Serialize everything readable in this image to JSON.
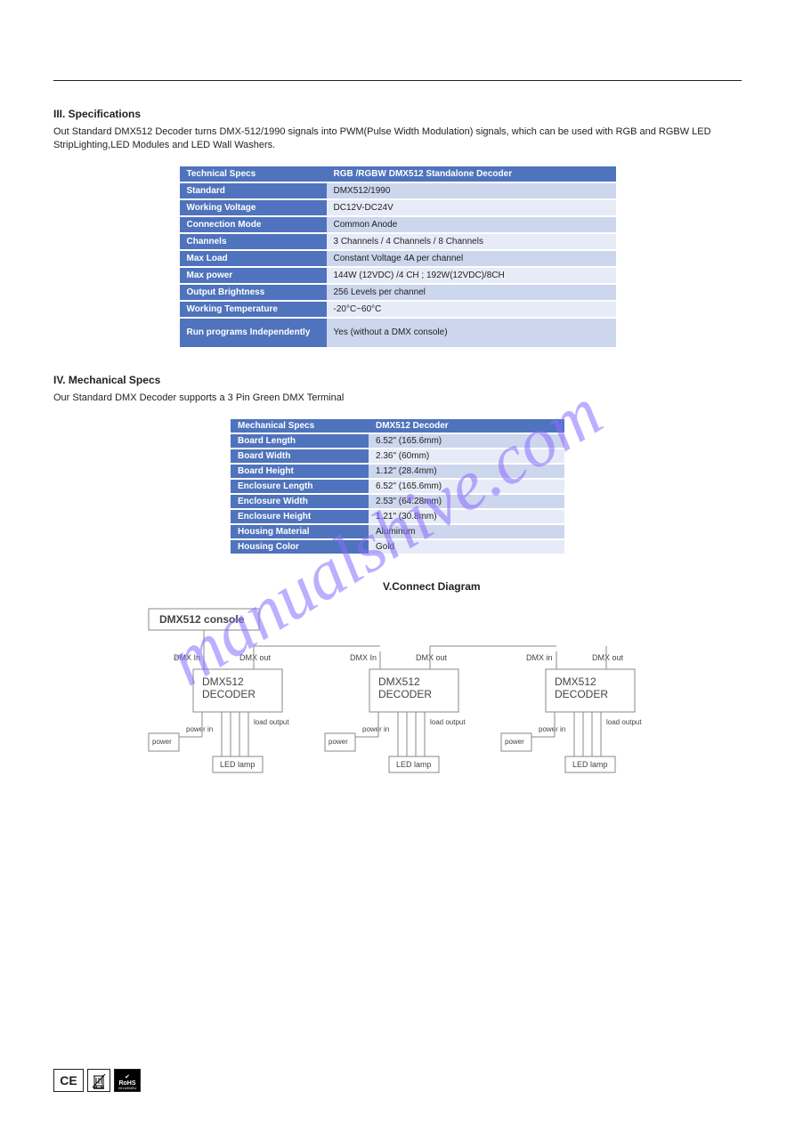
{
  "section3": {
    "heading": "III. Specifications",
    "desc": "Out Standard DMX512 Decoder turns DMX-512/1990 signals into PWM(Pulse Width Modulation) signals, which can be used with RGB and RGBW LED StripLighting,LED Modules and LED Wall Washers.",
    "table": {
      "colors": {
        "hd": "#4f73bc",
        "row_odd": "#ccd6ed",
        "row_even": "#e6ebf7",
        "hd_text": "#ffffff",
        "row_text": "#222222"
      },
      "head": [
        "Technical Specs",
        "RGB /RGBW DMX512 Standalone Decoder"
      ],
      "rows": [
        [
          "Standard",
          "DMX512/1990"
        ],
        [
          "Working Voltage",
          "DC12V-DC24V"
        ],
        [
          "Connection Mode",
          "Common Anode"
        ],
        [
          "Channels",
          "3 Channels / 4 Channels / 8 Channels"
        ],
        [
          "Max Load",
          "Constant Voltage 4A per channel"
        ],
        [
          "Max power",
          "144W (12VDC) /4 CH ; 192W(12VDC)/8CH"
        ],
        [
          "Output Brightness",
          "256 Levels per channel"
        ],
        [
          "Working Temperature",
          "-20°C~60°C"
        ],
        [
          "Run programs Independently",
          "Yes (without a DMX console)"
        ]
      ]
    }
  },
  "section4": {
    "heading": "IV. Mechanical Specs",
    "desc": "Our Standard DMX Decoder supports a 3 Pin Green DMX Terminal",
    "table": {
      "colors": {
        "hd": "#4f73bc",
        "row_odd": "#ccd6ed",
        "row_even": "#e6ebf7",
        "hd_text": "#ffffff",
        "row_text": "#222222"
      },
      "head": [
        "Mechanical Specs",
        "DMX512 Decoder"
      ],
      "rows": [
        [
          "Board Length",
          "6.52\" (165.6mm)"
        ],
        [
          "Board Width",
          "2.36\" (60mm)"
        ],
        [
          "Board Height",
          "1.12\" (28.4mm)"
        ],
        [
          "Enclosure Length",
          "6.52\" (165.6mm)"
        ],
        [
          "Enclosure Width",
          "2.53\" (64.28mm)"
        ],
        [
          "Enclosure Height",
          "1.21\" (30.8mm)"
        ],
        [
          "Housing Material",
          "Aluminum"
        ],
        [
          "Housing Color",
          "Gold"
        ]
      ]
    }
  },
  "connect": {
    "title": "V.Connect Diagram"
  },
  "diagram": {
    "console_label": "DMX512 console",
    "nodes": [
      {
        "label": "DMX512\nDECODER",
        "in": "DMX In",
        "out": "DMX out",
        "power": "power",
        "power_in": "power in",
        "load": "load output",
        "lamp": "LED lamp"
      },
      {
        "label": "DMX512\nDECODER",
        "in": "DMX In",
        "out": "DMX out",
        "power": "power",
        "power_in": "power in",
        "load": "load output",
        "lamp": "LED lamp"
      },
      {
        "label": "DMX512\nDECODER",
        "in": "DMX in",
        "out": "DMX out",
        "power": "power",
        "power_in": "power in",
        "load": "load output",
        "lamp": "LED lamp"
      }
    ],
    "colors": {
      "box_stroke": "#777777",
      "text": "#444444",
      "wire": "#888888"
    }
  },
  "badges": {
    "ce": "CE",
    "rohs_top": "RoHS",
    "rohs_sub": "2011/65/EU"
  },
  "watermark": {
    "text": "manualshive.com",
    "color": "#8a6cff"
  }
}
